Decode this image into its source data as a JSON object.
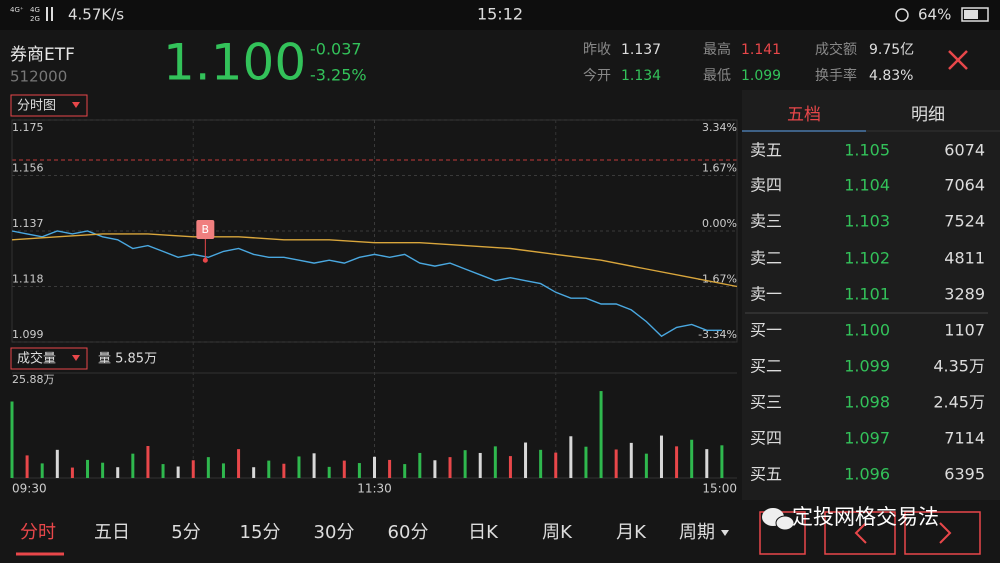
{
  "status_bar": {
    "network": [
      "4G⁺",
      "4G",
      "2G"
    ],
    "speed": "4.57K/s",
    "time": "15:12",
    "battery": "64%"
  },
  "header": {
    "name": "券商ETF",
    "code": "512000",
    "price": "1.100",
    "change": "-0.037",
    "change_pct": "-3.25%",
    "stats": [
      [
        "昨收",
        "1.137"
      ],
      [
        "今开",
        "1.134"
      ],
      [
        "最高",
        "1.141"
      ],
      [
        "最低",
        "1.099"
      ],
      [
        "成交额",
        "9.75亿"
      ],
      [
        "换手率",
        "4.83%"
      ]
    ]
  },
  "chart_data": [
    {
      "type": "line",
      "selector": "分时图",
      "grid": true,
      "xlim": [
        0,
        240
      ],
      "xticks": [
        {
          "value": 0,
          "label": "09:30"
        },
        {
          "value": 120,
          "label": "11:30"
        },
        {
          "value": 240,
          "label": "15:00"
        }
      ],
      "ylim": [
        1.099,
        1.175
      ],
      "yticks": [
        1.099,
        1.118,
        1.137,
        1.156,
        1.175
      ],
      "y2lim": [
        -3.34,
        3.34
      ],
      "y2ticks": [
        {
          "value": -3.34,
          "label": "-3.34%"
        },
        {
          "value": -1.67,
          "label": "-1.67%"
        },
        {
          "value": 0,
          "label": "0.00%"
        },
        {
          "value": 1.67,
          "label": "1.67%"
        },
        {
          "value": 3.34,
          "label": "3.34%"
        }
      ],
      "series": [
        {
          "color": "#4aa8e0",
          "x": [
            0,
            5,
            10,
            15,
            20,
            25,
            30,
            35,
            40,
            45,
            50,
            55,
            60,
            65,
            70,
            75,
            80,
            85,
            90,
            95,
            100,
            105,
            110,
            115,
            120,
            125,
            130,
            135,
            140,
            145,
            150,
            155,
            160,
            165,
            170,
            175,
            180,
            185,
            190,
            195,
            200,
            205,
            210,
            215,
            220,
            225,
            230,
            235
          ],
          "values": [
            1.137,
            1.136,
            1.135,
            1.137,
            1.136,
            1.137,
            1.135,
            1.134,
            1.131,
            1.132,
            1.13,
            1.128,
            1.129,
            1.128,
            1.13,
            1.131,
            1.129,
            1.128,
            1.128,
            1.127,
            1.126,
            1.127,
            1.126,
            1.128,
            1.129,
            1.128,
            1.129,
            1.126,
            1.125,
            1.126,
            1.124,
            1.122,
            1.12,
            1.121,
            1.12,
            1.119,
            1.116,
            1.114,
            1.114,
            1.112,
            1.112,
            1.11,
            1.106,
            1.101,
            1.104,
            1.105,
            1.103,
            1.103
          ]
        },
        {
          "color": "#d9a63c",
          "x": [
            0,
            15,
            30,
            45,
            60,
            75,
            90,
            105,
            120,
            135,
            150,
            165,
            180,
            195,
            210,
            225,
            240
          ],
          "values": [
            1.134,
            1.135,
            1.136,
            1.136,
            1.135,
            1.135,
            1.134,
            1.134,
            1.133,
            1.133,
            1.132,
            1.131,
            1.129,
            1.127,
            1.124,
            1.121,
            1.118
          ]
        }
      ],
      "annotations": [
        {
          "label": "B",
          "x": 64,
          "y": 1.127
        }
      ]
    },
    {
      "type": "bar",
      "selector": "成交量",
      "volume_label": "量 5.85万",
      "xlim": [
        0,
        240
      ],
      "ylim": [
        0,
        25.88
      ],
      "yticks": [
        {
          "value": 25.88,
          "label": "25.88万"
        }
      ],
      "x": [
        0,
        5,
        10,
        15,
        20,
        25,
        30,
        35,
        40,
        45,
        50,
        55,
        60,
        65,
        70,
        75,
        80,
        85,
        90,
        95,
        100,
        105,
        110,
        115,
        120,
        125,
        130,
        135,
        140,
        145,
        150,
        155,
        160,
        165,
        170,
        175,
        180,
        185,
        190,
        195,
        200,
        205,
        210,
        215,
        220,
        225,
        230,
        235
      ],
      "values": [
        22.0,
        6.5,
        4.2,
        8.1,
        3.0,
        5.2,
        4.4,
        3.1,
        7.0,
        9.2,
        4.0,
        3.3,
        5.1,
        6.0,
        4.2,
        8.3,
        3.1,
        5.0,
        4.1,
        6.2,
        7.1,
        3.2,
        5.0,
        4.3,
        6.1,
        5.2,
        4.0,
        7.2,
        5.1,
        6.0,
        8.0,
        7.2,
        9.1,
        6.3,
        10.2,
        8.1,
        7.3,
        12.0,
        9.0,
        25.0,
        8.2,
        10.1,
        7.0,
        12.2,
        9.1,
        11.0,
        8.3,
        9.4
      ],
      "colors": [
        "#2fb84e",
        "#e8474a",
        "#2fb84e",
        "#d8d8d8",
        "#e8474a",
        "#2fb84e",
        "#2fb84e",
        "#d8d8d8",
        "#2fb84e",
        "#e8474a",
        "#2fb84e",
        "#d8d8d8",
        "#e8474a",
        "#2fb84e",
        "#2fb84e",
        "#e8474a",
        "#d8d8d8",
        "#2fb84e",
        "#e8474a",
        "#2fb84e",
        "#d8d8d8",
        "#2fb84e",
        "#e8474a",
        "#2fb84e",
        "#d8d8d8",
        "#e8474a",
        "#2fb84e",
        "#2fb84e",
        "#d8d8d8",
        "#e8474a",
        "#2fb84e",
        "#d8d8d8",
        "#2fb84e",
        "#e8474a",
        "#d8d8d8",
        "#2fb84e",
        "#e8474a",
        "#d8d8d8",
        "#2fb84e",
        "#2fb84e",
        "#e8474a",
        "#d8d8d8",
        "#2fb84e",
        "#d8d8d8",
        "#e8474a",
        "#2fb84e",
        "#d8d8d8",
        "#2fb84e"
      ]
    }
  ],
  "order_book": {
    "tabs": [
      "五档",
      "明细"
    ],
    "rows": [
      [
        "卖五",
        "1.105",
        "6074"
      ],
      [
        "卖四",
        "1.104",
        "7064"
      ],
      [
        "卖三",
        "1.103",
        "7524"
      ],
      [
        "卖二",
        "1.102",
        "4811"
      ],
      [
        "卖一",
        "1.101",
        "3289"
      ],
      [
        "买一",
        "1.100",
        "1107"
      ],
      [
        "买二",
        "1.099",
        "4.35万"
      ],
      [
        "买三",
        "1.098",
        "2.45万"
      ],
      [
        "买四",
        "1.097",
        "7114"
      ],
      [
        "买五",
        "1.096",
        "6395"
      ]
    ]
  },
  "bottom_tabs": [
    "分时",
    "五日",
    "5分",
    "15分",
    "30分",
    "60分",
    "日K",
    "周K",
    "月K",
    "周期"
  ],
  "watermark": "定投网格交易法"
}
